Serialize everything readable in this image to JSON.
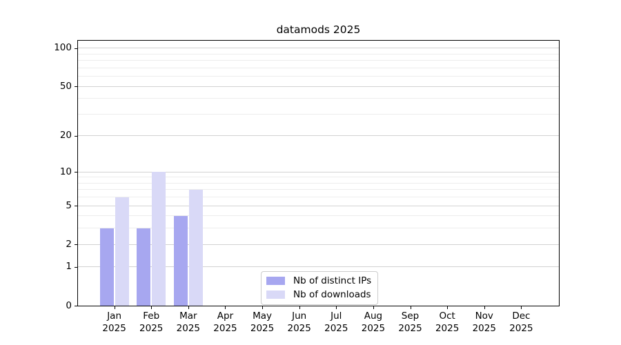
{
  "chart_data": {
    "type": "bar",
    "title": "datamods 2025",
    "categories": [
      "Jan",
      "Feb",
      "Mar",
      "Apr",
      "May",
      "Jun",
      "Jul",
      "Aug",
      "Sep",
      "Oct",
      "Nov",
      "Dec"
    ],
    "year_label": "2025",
    "series": [
      {
        "name": "Nb of distinct IPs",
        "color": "#a7a7f0",
        "values": [
          3,
          3,
          4,
          0,
          0,
          0,
          0,
          0,
          0,
          0,
          0,
          0
        ]
      },
      {
        "name": "Nb of downloads",
        "color": "#d9d9f7",
        "values": [
          6,
          10,
          7,
          0,
          0,
          0,
          0,
          0,
          0,
          0,
          0,
          0
        ]
      }
    ],
    "yscale": "log1p",
    "ylim": [
      0,
      113
    ],
    "y_major_ticks": [
      0,
      1,
      2,
      5,
      10,
      20,
      50,
      100
    ],
    "y_minor_ticks": [
      3,
      4,
      6,
      7,
      8,
      9,
      30,
      40,
      60,
      70,
      80,
      90
    ],
    "grid": true,
    "legend_position": "inside-bottom-center"
  }
}
